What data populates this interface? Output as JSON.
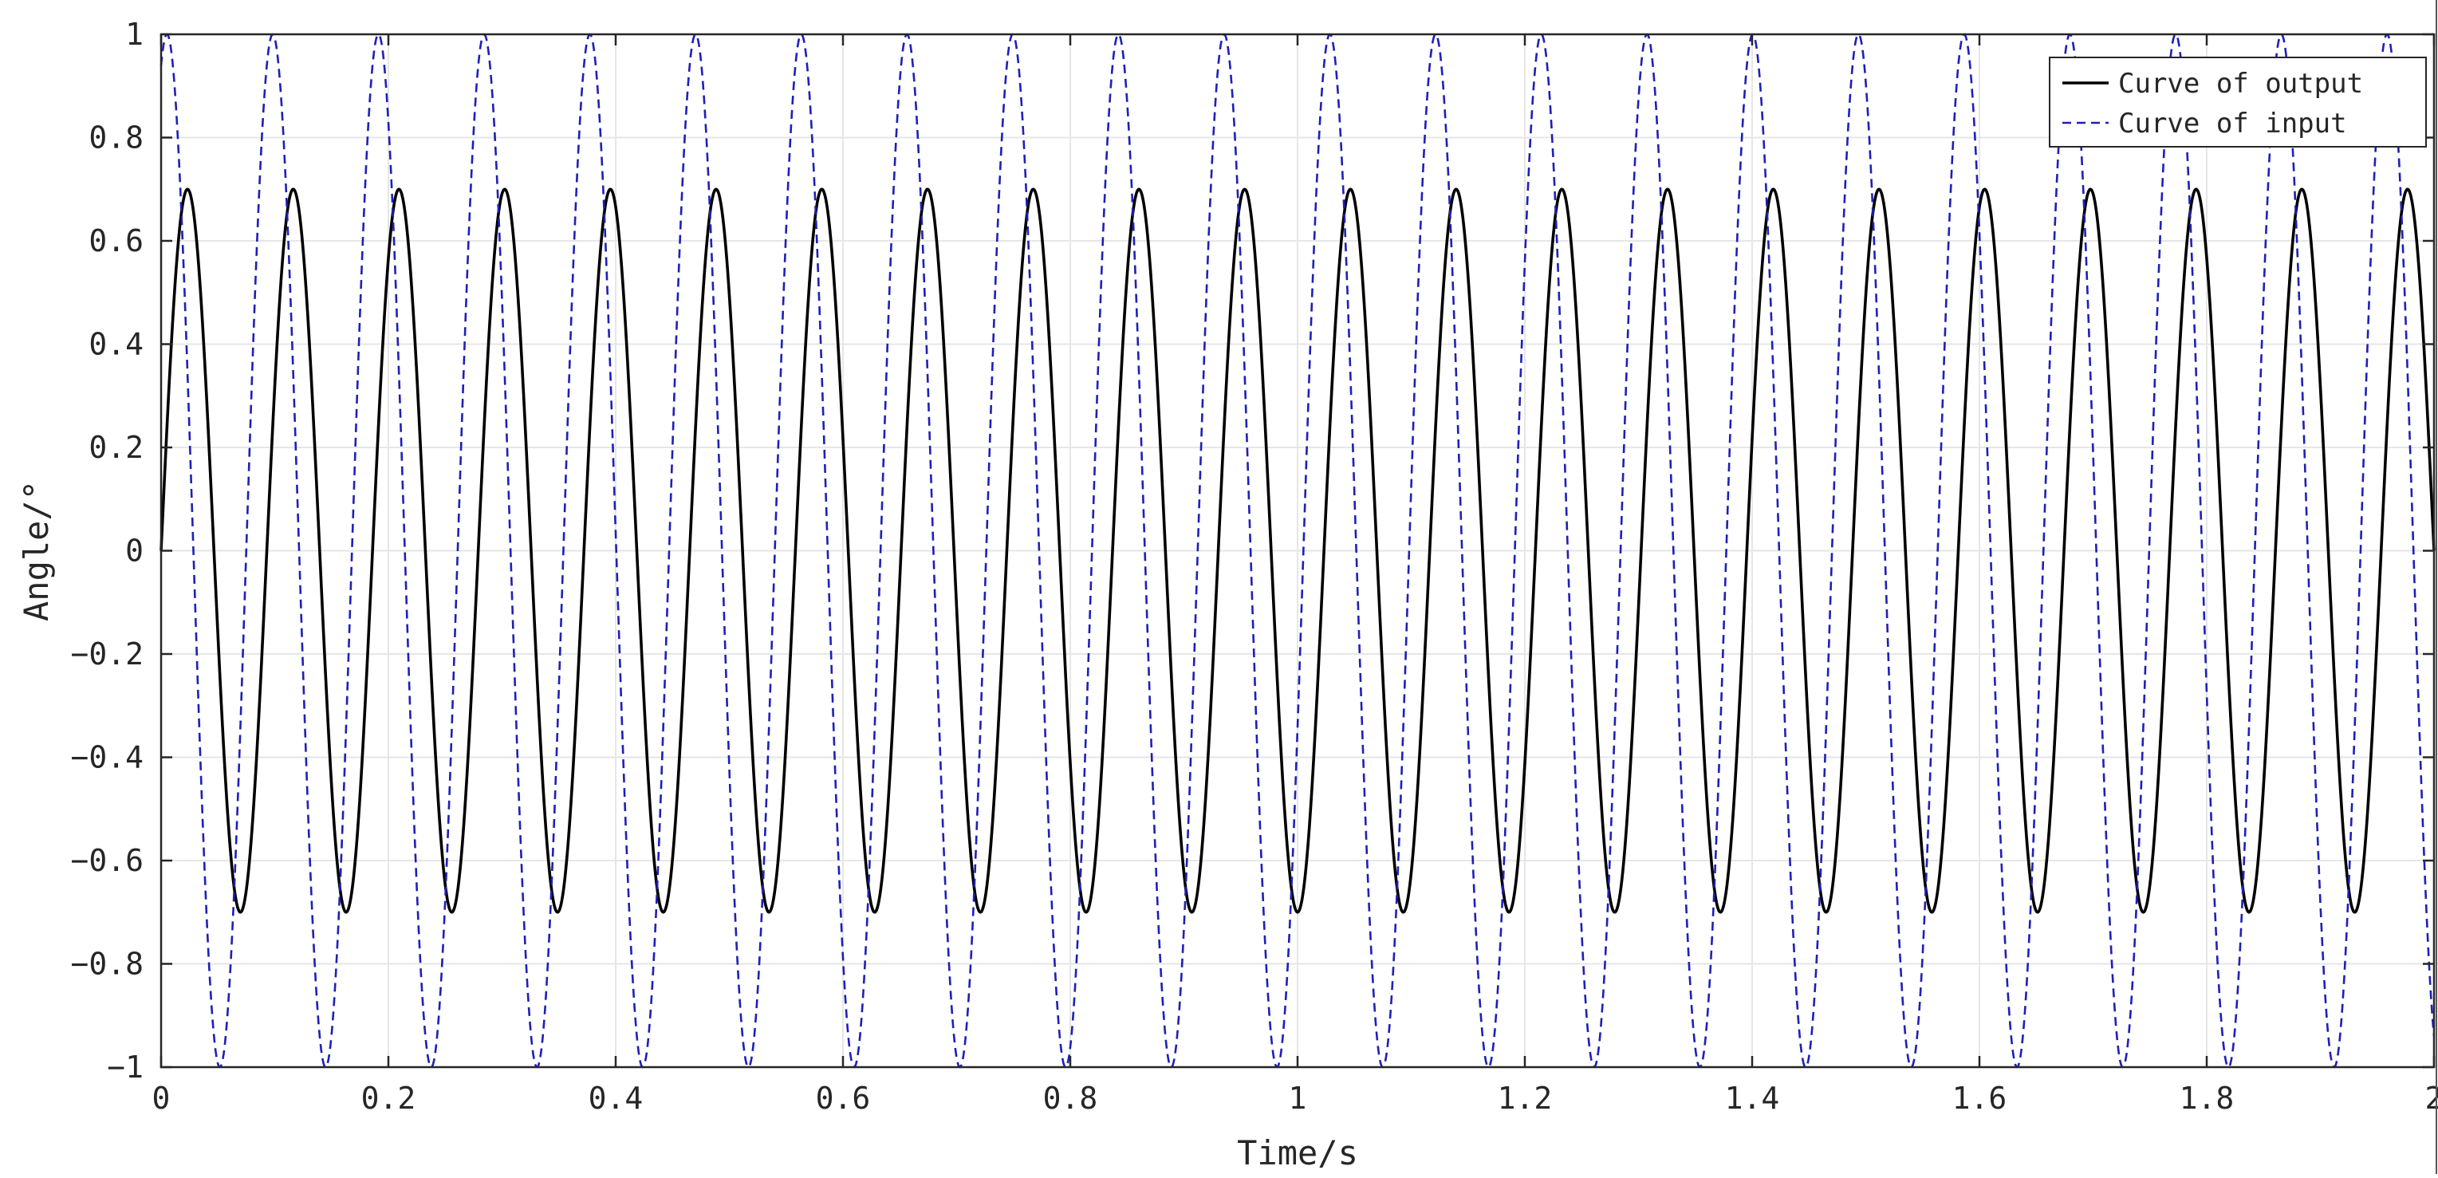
{
  "chart_data": {
    "type": "line",
    "title": "",
    "xlabel": "Time/s",
    "ylabel": "Angle/°",
    "xlim": [
      0,
      2
    ],
    "ylim": [
      -1,
      1
    ],
    "xticks": [
      0,
      0.2,
      0.4,
      0.6,
      0.8,
      1,
      1.2,
      1.4,
      1.6,
      1.8,
      2
    ],
    "xtick_labels": [
      "0",
      "0.2",
      "0.4",
      "0.6",
      "0.8",
      "1",
      "1.2",
      "1.4",
      "1.6",
      "1.8",
      "2"
    ],
    "yticks": [
      -1,
      -0.8,
      -0.6,
      -0.4,
      -0.2,
      0,
      0.2,
      0.4,
      0.6,
      0.8,
      1
    ],
    "ytick_labels": [
      "-1",
      "-0.8",
      "-0.6",
      "-0.4",
      "-0.2",
      "0",
      "0.2",
      "0.4",
      "0.6",
      "0.8",
      "1"
    ],
    "grid": true,
    "legend_position": "top-right",
    "series": [
      {
        "name": "Curve of output",
        "style": "solid",
        "color": "#000000",
        "function": "sine",
        "amplitude": 0.7,
        "frequency_hz": 10.75,
        "phase_deg": 0
      },
      {
        "name": "Curve of input",
        "style": "dashed",
        "color": "#1f1fb8",
        "function": "sine",
        "amplitude": 1.0,
        "frequency_hz": 10.75,
        "phase_deg": 70
      }
    ]
  }
}
